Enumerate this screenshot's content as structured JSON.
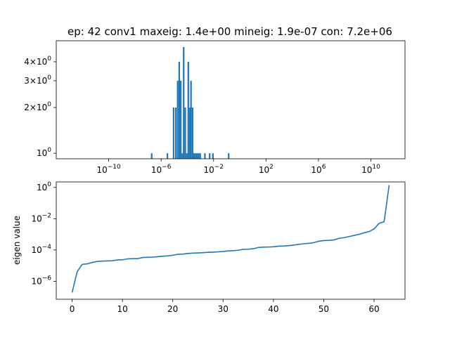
{
  "chart_data": [
    {
      "type": "bar",
      "title": "ep: 42 conv1 maxeig: 1.4e+00 mineig: 1.9e-07 con: 7.2e+06",
      "xscale": "log",
      "yscale": "log",
      "xlim_exp": [
        -14,
        12.6
      ],
      "ylim": [
        0.92,
        5.5
      ],
      "x_ticks": [
        {
          "base": "10",
          "exp": "−10",
          "value_exp": -10
        },
        {
          "base": "10",
          "exp": "−6",
          "value_exp": -6
        },
        {
          "base": "10",
          "exp": "−2",
          "value_exp": -2
        },
        {
          "base": "10",
          "exp": "2",
          "value_exp": 2
        },
        {
          "base": "10",
          "exp": "6",
          "value_exp": 6
        },
        {
          "base": "10",
          "exp": "10",
          "value_exp": 10
        }
      ],
      "y_ticks": [
        {
          "label": "10",
          "exp": "0",
          "mant": "",
          "value": 1
        },
        {
          "label": "2×10",
          "exp": "0",
          "mant": "2",
          "value": 2
        },
        {
          "label": "3×10",
          "exp": "0",
          "mant": "3",
          "value": 3
        },
        {
          "label": "4×10",
          "exp": "0",
          "mant": "4",
          "value": 4
        }
      ],
      "bins": [
        {
          "x_exp": -6.72,
          "count": 1
        },
        {
          "x_exp": -5.52,
          "count": 1
        },
        {
          "x_exp": -5.05,
          "count": 2
        },
        {
          "x_exp": -4.88,
          "count": 2
        },
        {
          "x_exp": -4.74,
          "count": 3
        },
        {
          "x_exp": -4.62,
          "count": 4
        },
        {
          "x_exp": -4.5,
          "count": 3
        },
        {
          "x_exp": -4.38,
          "count": 1
        },
        {
          "x_exp": -4.28,
          "count": 5
        },
        {
          "x_exp": -4.16,
          "count": 2
        },
        {
          "x_exp": -4.04,
          "count": 1
        },
        {
          "x_exp": -3.93,
          "count": 4
        },
        {
          "x_exp": -3.82,
          "count": 2
        },
        {
          "x_exp": -3.72,
          "count": 3
        },
        {
          "x_exp": -3.6,
          "count": 2
        },
        {
          "x_exp": -3.49,
          "count": 1
        },
        {
          "x_exp": -3.37,
          "count": 1
        },
        {
          "x_exp": -3.26,
          "count": 1
        },
        {
          "x_exp": -3.14,
          "count": 1
        },
        {
          "x_exp": -3.02,
          "count": 1
        },
        {
          "x_exp": -2.66,
          "count": 1
        },
        {
          "x_exp": -2.3,
          "count": 1
        },
        {
          "x_exp": -2.05,
          "count": 1
        },
        {
          "x_exp": -0.85,
          "count": 1
        }
      ]
    },
    {
      "type": "line",
      "title": "",
      "ylabel": "eigen value",
      "yscale": "log",
      "xlim": [
        -3.15,
        66.15
      ],
      "ylim_exp": [
        -7.15,
        0.35
      ],
      "x_ticks": [
        0,
        10,
        20,
        30,
        40,
        50,
        60
      ],
      "y_ticks": [
        {
          "base": "10",
          "exp": "0",
          "value_exp": 0
        },
        {
          "base": "10",
          "exp": "−2",
          "value_exp": -2
        },
        {
          "base": "10",
          "exp": "−4",
          "value_exp": -4
        },
        {
          "base": "10",
          "exp": "−6",
          "value_exp": -6
        }
      ],
      "x": [
        0,
        1,
        2,
        3,
        4,
        5,
        6,
        7,
        8,
        9,
        10,
        11,
        12,
        13,
        14,
        15,
        16,
        17,
        18,
        19,
        20,
        21,
        22,
        23,
        24,
        25,
        26,
        27,
        28,
        29,
        30,
        31,
        32,
        33,
        34,
        35,
        36,
        37,
        38,
        39,
        40,
        41,
        42,
        43,
        44,
        45,
        46,
        47,
        48,
        49,
        50,
        51,
        52,
        53,
        54,
        55,
        56,
        57,
        58,
        59,
        60,
        61,
        62,
        63
      ],
      "y": [
        1.9e-07,
        4e-06,
        1.2e-05,
        1.3e-05,
        1.6e-05,
        1.85e-05,
        1.95e-05,
        2e-05,
        2.05e-05,
        2.3e-05,
        2.35e-05,
        2.7e-05,
        2.8e-05,
        2.8e-05,
        3.3e-05,
        3.4e-05,
        3.5e-05,
        3.7e-05,
        4e-05,
        4.2e-05,
        4.6e-05,
        5.3e-05,
        5.5e-05,
        6e-05,
        6.3e-05,
        6.5e-05,
        6.7e-05,
        7.1e-05,
        7.3e-05,
        7.6e-05,
        8.1e-05,
        8.7e-05,
        9.1e-05,
        9.6e-05,
        0.00011,
        0.000112,
        0.00012,
        0.000145,
        0.000152,
        0.000155,
        0.00016,
        0.000175,
        0.00018,
        0.00019,
        0.000205,
        0.00023,
        0.00025,
        0.000265,
        0.000295,
        0.00036,
        0.0004,
        0.00041,
        0.00044,
        0.00055,
        0.00061,
        0.00072,
        0.00085,
        0.001,
        0.00125,
        0.0015,
        0.0022,
        0.005,
        0.0065,
        1.4
      ]
    }
  ]
}
